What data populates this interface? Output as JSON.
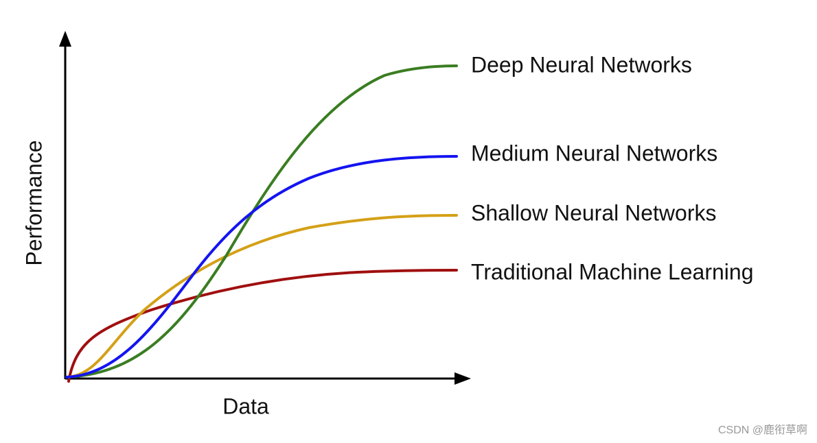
{
  "axes": {
    "x_label": "Data",
    "y_label": "Performance"
  },
  "curves": [
    {
      "label": "Deep Neural Networks"
    },
    {
      "label": "Medium Neural Networks"
    },
    {
      "label": "Shallow Neural Networks"
    },
    {
      "label": "Traditional Machine Learning"
    }
  ],
  "watermark": "CSDN @鹿衔草啊"
}
